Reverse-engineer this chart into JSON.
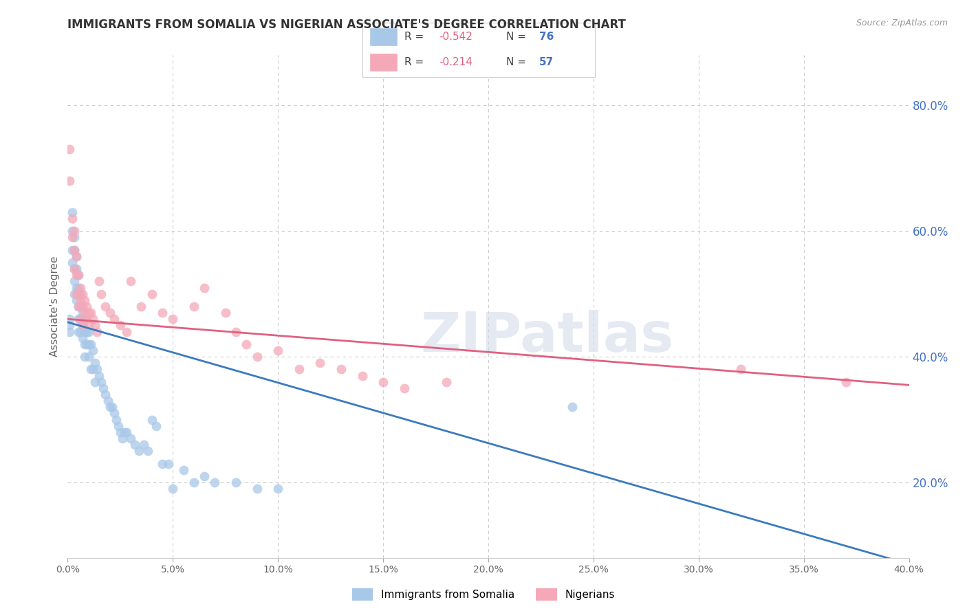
{
  "title": "IMMIGRANTS FROM SOMALIA VS NIGERIAN ASSOCIATE'S DEGREE CORRELATION CHART",
  "source": "Source: ZipAtlas.com",
  "ylabel": "Associate's Degree",
  "legend_label1": "Immigrants from Somalia",
  "legend_label2": "Nigerians",
  "r1": -0.542,
  "n1": 76,
  "r2": -0.214,
  "n2": 57,
  "color1": "#a8c8e8",
  "color2": "#f4a8b8",
  "line_color1": "#3a7abf",
  "line_color2": "#e06080",
  "xlim": [
    0.0,
    0.4
  ],
  "ylim": [
    0.08,
    0.88
  ],
  "xticks": [
    0.0,
    0.05,
    0.1,
    0.15,
    0.2,
    0.25,
    0.3,
    0.35,
    0.4
  ],
  "yticks_right": [
    0.2,
    0.4,
    0.6,
    0.8
  ],
  "watermark": "ZIPatlas",
  "somalia_x": [
    0.001,
    0.001,
    0.001,
    0.002,
    0.002,
    0.002,
    0.002,
    0.003,
    0.003,
    0.003,
    0.003,
    0.003,
    0.004,
    0.004,
    0.004,
    0.004,
    0.005,
    0.005,
    0.005,
    0.005,
    0.005,
    0.006,
    0.006,
    0.006,
    0.006,
    0.007,
    0.007,
    0.007,
    0.008,
    0.008,
    0.008,
    0.008,
    0.009,
    0.009,
    0.01,
    0.01,
    0.01,
    0.011,
    0.011,
    0.012,
    0.012,
    0.013,
    0.013,
    0.014,
    0.015,
    0.016,
    0.017,
    0.018,
    0.019,
    0.02,
    0.021,
    0.022,
    0.023,
    0.024,
    0.025,
    0.026,
    0.027,
    0.028,
    0.03,
    0.032,
    0.034,
    0.036,
    0.038,
    0.04,
    0.042,
    0.045,
    0.048,
    0.05,
    0.055,
    0.06,
    0.065,
    0.07,
    0.08,
    0.09,
    0.1,
    0.24
  ],
  "somalia_y": [
    0.46,
    0.45,
    0.44,
    0.63,
    0.6,
    0.57,
    0.55,
    0.59,
    0.57,
    0.54,
    0.52,
    0.5,
    0.56,
    0.54,
    0.51,
    0.49,
    0.53,
    0.51,
    0.48,
    0.46,
    0.44,
    0.5,
    0.48,
    0.46,
    0.44,
    0.47,
    0.45,
    0.43,
    0.46,
    0.44,
    0.42,
    0.4,
    0.44,
    0.42,
    0.44,
    0.42,
    0.4,
    0.42,
    0.38,
    0.41,
    0.38,
    0.39,
    0.36,
    0.38,
    0.37,
    0.36,
    0.35,
    0.34,
    0.33,
    0.32,
    0.32,
    0.31,
    0.3,
    0.29,
    0.28,
    0.27,
    0.28,
    0.28,
    0.27,
    0.26,
    0.25,
    0.26,
    0.25,
    0.3,
    0.29,
    0.23,
    0.23,
    0.19,
    0.22,
    0.2,
    0.21,
    0.2,
    0.2,
    0.19,
    0.19,
    0.32
  ],
  "nigeria_x": [
    0.001,
    0.001,
    0.002,
    0.002,
    0.003,
    0.003,
    0.003,
    0.004,
    0.004,
    0.004,
    0.005,
    0.005,
    0.005,
    0.006,
    0.006,
    0.006,
    0.007,
    0.007,
    0.007,
    0.008,
    0.008,
    0.009,
    0.009,
    0.01,
    0.01,
    0.011,
    0.012,
    0.013,
    0.014,
    0.015,
    0.016,
    0.018,
    0.02,
    0.022,
    0.025,
    0.028,
    0.03,
    0.035,
    0.04,
    0.045,
    0.05,
    0.06,
    0.065,
    0.075,
    0.08,
    0.085,
    0.09,
    0.1,
    0.11,
    0.12,
    0.13,
    0.14,
    0.15,
    0.16,
    0.18,
    0.32,
    0.37
  ],
  "nigeria_y": [
    0.73,
    0.68,
    0.62,
    0.59,
    0.6,
    0.57,
    0.54,
    0.56,
    0.53,
    0.5,
    0.53,
    0.5,
    0.48,
    0.51,
    0.49,
    0.46,
    0.5,
    0.48,
    0.45,
    0.49,
    0.47,
    0.48,
    0.46,
    0.47,
    0.45,
    0.47,
    0.46,
    0.45,
    0.44,
    0.52,
    0.5,
    0.48,
    0.47,
    0.46,
    0.45,
    0.44,
    0.52,
    0.48,
    0.5,
    0.47,
    0.46,
    0.48,
    0.51,
    0.47,
    0.44,
    0.42,
    0.4,
    0.41,
    0.38,
    0.39,
    0.38,
    0.37,
    0.36,
    0.35,
    0.36,
    0.38,
    0.36
  ],
  "background_color": "#ffffff",
  "grid_color": "#cccccc",
  "title_color": "#333333",
  "right_axis_color": "#4472c4",
  "source_color": "#999999"
}
